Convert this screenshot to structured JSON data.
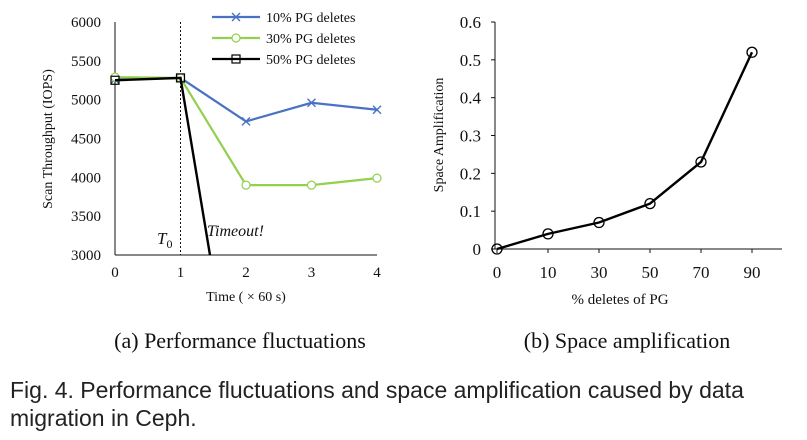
{
  "chart_data": [
    {
      "type": "line",
      "title": "",
      "xlabel": "Time ( × 60 s)",
      "ylabel": "Scan Throughput (IOPS)",
      "x": [
        0,
        1,
        2,
        3,
        4
      ],
      "xlim": [
        0,
        4
      ],
      "ylim": [
        3000,
        6000
      ],
      "yticks": [
        3000,
        3500,
        4000,
        4500,
        5000,
        5500,
        6000
      ],
      "xticks": [
        0,
        1,
        2,
        3,
        4
      ],
      "legend_position": "top-right",
      "series": [
        {
          "name": "10% PG deletes",
          "color": "#4a72c4",
          "marker": "x",
          "x": [
            0,
            1,
            2,
            3,
            4
          ],
          "values": [
            5260,
            5280,
            4720,
            4960,
            4870
          ]
        },
        {
          "name": "30% PG deletes",
          "color": "#92d050",
          "marker": "circle",
          "x": [
            0,
            1,
            2,
            3,
            4
          ],
          "values": [
            5290,
            5280,
            3900,
            3900,
            3990
          ]
        },
        {
          "name": "50% PG deletes",
          "color": "#000000",
          "marker": "square",
          "x": [
            0,
            1,
            1.45
          ],
          "values": [
            5250,
            5280,
            3000
          ]
        }
      ],
      "annotations": [
        {
          "text": "T",
          "subscript": "0",
          "x": 1,
          "role": "vertical-marker"
        },
        {
          "text": "Timeout!",
          "color": "#d62728"
        }
      ],
      "subcaption": "(a) Performance fluctuations"
    },
    {
      "type": "line",
      "title": "",
      "xlabel": "% deletes of PG",
      "ylabel": "Space Amplification",
      "categories": [
        "0",
        "10",
        "30",
        "50",
        "70",
        "90"
      ],
      "values": [
        0,
        0.04,
        0.07,
        0.12,
        0.23,
        0.52
      ],
      "ylim": [
        0,
        0.6
      ],
      "yticks": [
        "0",
        "0.1",
        "0.2",
        "0.3",
        "0.4",
        "0.5",
        "0.6"
      ],
      "marker": "circle",
      "color": "#000000",
      "subcaption": "(b) Space amplification"
    }
  ],
  "caption": "Fig. 4. Performance fluctuations and space amplification caused by data migration in Ceph."
}
